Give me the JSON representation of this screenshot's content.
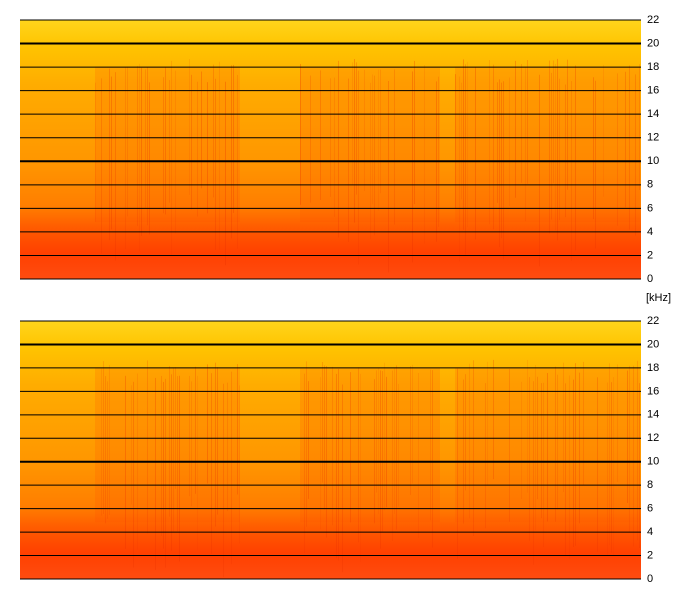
{
  "axis_label": "[kHz]",
  "chart_data": [
    {
      "type": "spectrogram",
      "ylim": [
        0,
        22
      ],
      "yticks": [
        0,
        2,
        4,
        6,
        8,
        10,
        12,
        14,
        16,
        18,
        20,
        22
      ],
      "thick_grid_at": [
        10,
        20
      ],
      "grid": true
    },
    {
      "type": "spectrogram",
      "ylim": [
        0,
        22
      ],
      "yticks": [
        0,
        2,
        4,
        6,
        8,
        10,
        12,
        14,
        16,
        18,
        20,
        22
      ],
      "thick_grid_at": [
        10,
        20
      ],
      "grid": true
    }
  ]
}
